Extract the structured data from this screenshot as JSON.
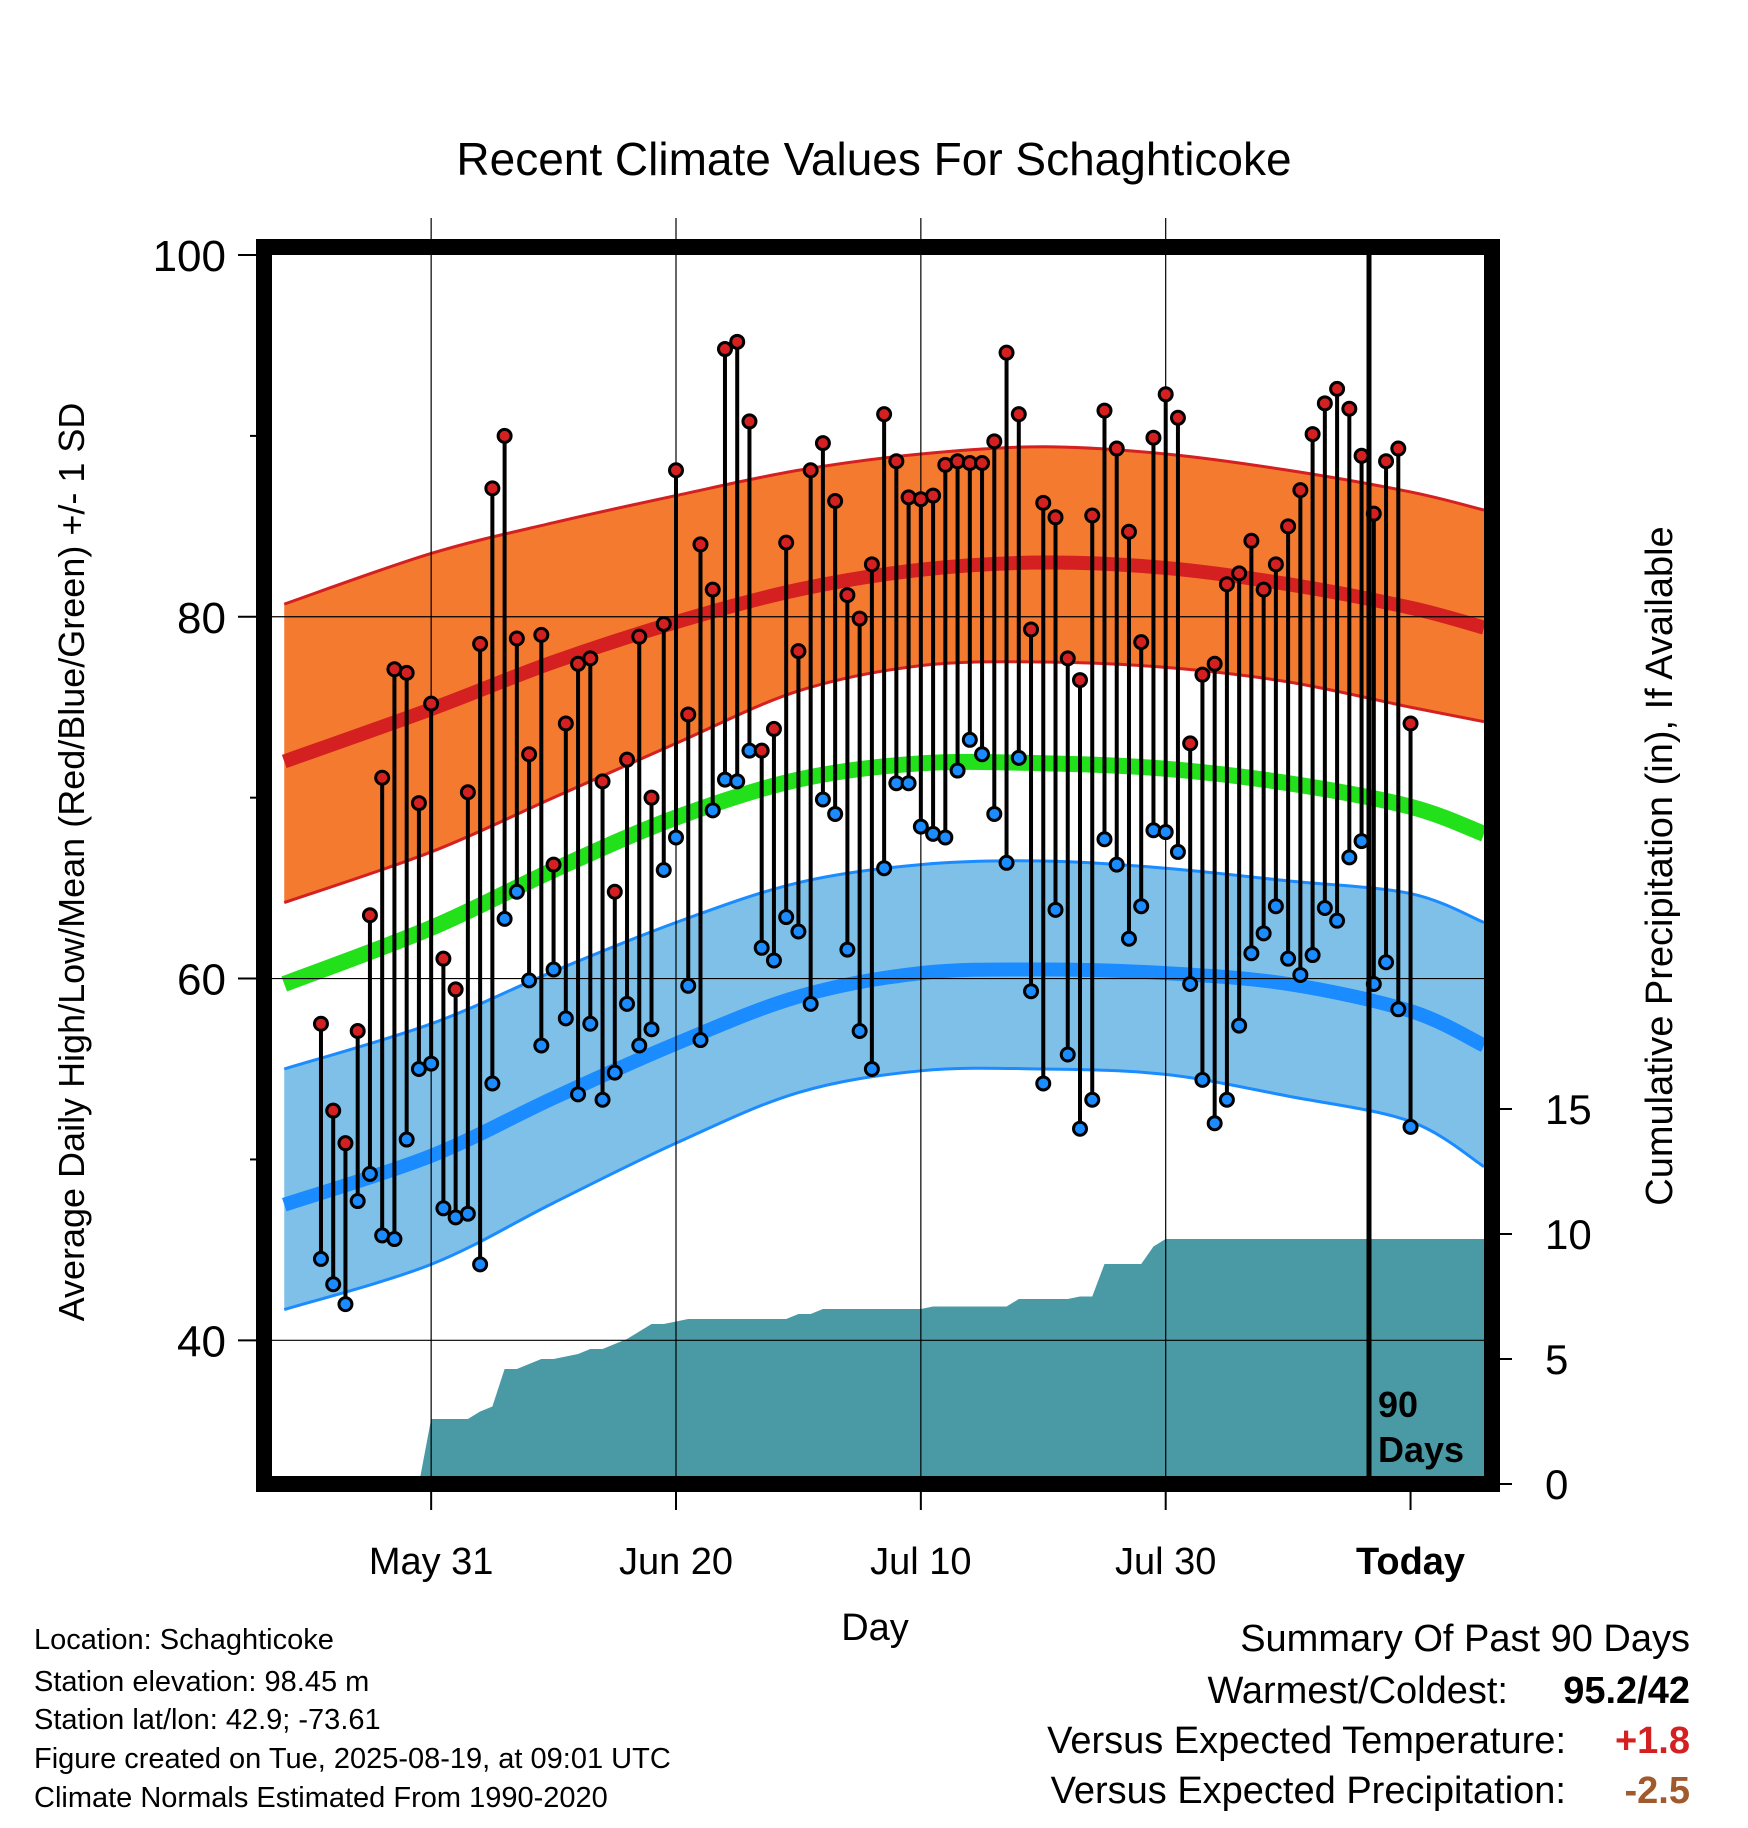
{
  "chart_data": {
    "type": "line",
    "title": "Recent Climate Values For Schaghticoke",
    "ylabel": "Average Daily High/Low/Mean (Red/Blue/Green) +/- 1 SD",
    "y2label": "Cumulative Precipitation (in), If Available",
    "xlabel": "Day",
    "ylim": [
      32.5,
      100
    ],
    "y2lim": [
      0,
      15
    ],
    "x_range_days": [
      -93,
      6
    ],
    "yticks": [
      "100",
      "80",
      "60",
      "40"
    ],
    "y2ticks": [
      "0",
      "5",
      "10",
      "15"
    ],
    "xticks": [
      {
        "label": "May 31",
        "day": -80
      },
      {
        "label": "Jun 20",
        "day": -60
      },
      {
        "label": "Jul 10",
        "day": -40
      },
      {
        "label": "Jul 30",
        "day": -20
      },
      {
        "label": "Today",
        "day": 0
      }
    ],
    "today_label": [
      "90",
      "Days"
    ],
    "colors": {
      "high": "#d42020",
      "high_band": "#f47a30",
      "low": "#1a8cff",
      "low_band": "#7fc0e8",
      "mean": "#22e01a",
      "precip": "#4a9aa5",
      "grid": "#000000"
    },
    "normals": {
      "day": [
        -92,
        -80,
        -70,
        -60,
        -50,
        -40,
        -30,
        -20,
        -10,
        0,
        6
      ],
      "high_mean": [
        72.0,
        74.9,
        77.5,
        79.7,
        81.5,
        82.6,
        83.0,
        82.7,
        81.8,
        80.5,
        79.4
      ],
      "high_upper": [
        80.7,
        83.5,
        85.2,
        86.7,
        88.1,
        89.0,
        89.4,
        89.0,
        88.1,
        86.9,
        85.9
      ],
      "high_lower": [
        64.2,
        67.0,
        70.0,
        73.0,
        75.9,
        77.3,
        77.5,
        77.2,
        76.4,
        75.0,
        74.2
      ],
      "mean_mean": [
        59.7,
        62.8,
        66.0,
        68.9,
        71.0,
        71.9,
        71.9,
        71.6,
        70.8,
        69.5,
        68.0
      ],
      "low_mean": [
        47.5,
        50.2,
        53.4,
        56.4,
        59.0,
        60.3,
        60.5,
        60.3,
        59.7,
        58.2,
        56.3
      ],
      "low_upper": [
        55.0,
        57.5,
        60.4,
        63.1,
        65.3,
        66.3,
        66.5,
        66.1,
        65.4,
        64.7,
        63.1
      ],
      "low_lower": [
        41.7,
        44.2,
        47.6,
        50.9,
        53.7,
        54.9,
        55.0,
        54.7,
        53.5,
        52.1,
        49.6
      ]
    },
    "series": [
      {
        "name": "High",
        "values": [
          57.5,
          52.7,
          50.9,
          57.1,
          63.5,
          71.1,
          77.1,
          76.9,
          69.7,
          75.2,
          61.1,
          59.4,
          70.3,
          78.5,
          87.1,
          90.0,
          78.8,
          72.4,
          79.0,
          66.3,
          74.1,
          77.4,
          77.7,
          70.9,
          64.8,
          72.1,
          78.9,
          70.0,
          79.6,
          88.1,
          74.6,
          84.0,
          81.5,
          94.8,
          95.2,
          90.8,
          72.6,
          73.8,
          84.1,
          78.1,
          88.1,
          89.6,
          86.4,
          81.2,
          79.9,
          82.9,
          91.2,
          88.6,
          86.6,
          86.5,
          86.7,
          88.4,
          88.6,
          88.5,
          88.5,
          89.7,
          94.6,
          91.2,
          79.3,
          86.3,
          85.5,
          77.7,
          76.5,
          85.6,
          91.4,
          89.3,
          84.7,
          78.6,
          89.9,
          92.3,
          91.0,
          73.0,
          76.8,
          77.4,
          81.8,
          82.4,
          84.2,
          81.5,
          82.9,
          85.0,
          87.0,
          90.1,
          91.8,
          92.6,
          91.5,
          88.9,
          85.7,
          88.6,
          89.3,
          74.1
        ]
      },
      {
        "name": "Low",
        "values": [
          44.5,
          43.1,
          42.0,
          47.7,
          49.2,
          45.8,
          45.6,
          51.1,
          55.0,
          55.3,
          47.3,
          46.8,
          47.0,
          44.2,
          54.2,
          63.3,
          64.8,
          59.9,
          56.3,
          60.5,
          57.8,
          53.6,
          57.5,
          53.3,
          54.8,
          58.6,
          56.3,
          57.2,
          66.0,
          67.8,
          59.6,
          56.6,
          69.3,
          71.0,
          70.9,
          72.6,
          61.7,
          61.0,
          63.4,
          62.6,
          58.6,
          69.9,
          69.1,
          61.6,
          57.1,
          55.0,
          66.1,
          70.8,
          70.8,
          68.4,
          68.0,
          67.8,
          71.5,
          73.2,
          72.4,
          69.1,
          66.4,
          72.2,
          59.3,
          54.2,
          63.8,
          55.8,
          51.7,
          53.3,
          67.7,
          66.3,
          62.2,
          64.0,
          68.2,
          68.1,
          67.0,
          59.7,
          54.4,
          52.0,
          53.3,
          57.4,
          61.4,
          62.5,
          64.0,
          61.1,
          60.2,
          61.3,
          63.9,
          63.2,
          66.7,
          67.6,
          59.7,
          60.9,
          58.3,
          51.8
        ]
      }
    ],
    "precip": {
      "day": [
        -93,
        -81,
        -80,
        -77,
        -76,
        -75,
        -74,
        -73,
        -72,
        -71,
        -70,
        -69,
        -68,
        -67,
        -66,
        -65,
        -64,
        -63,
        -62,
        -61,
        -60,
        -59,
        -58,
        -57,
        -56,
        -55,
        -54,
        -53,
        -52,
        -51,
        -50,
        -49,
        -48,
        -47,
        -46,
        -45,
        -44,
        -43,
        -42,
        -41,
        -40,
        -39,
        -38,
        -37,
        -36,
        -35,
        -34,
        -33,
        -32,
        -31,
        -30,
        -29,
        -28,
        -27,
        -26,
        -25,
        -24,
        -23,
        -22,
        -21,
        -20,
        -19,
        -18,
        -17,
        6
      ],
      "values": [
        0,
        0,
        2.6,
        2.6,
        2.9,
        3.1,
        4.6,
        4.6,
        4.8,
        5.0,
        5.0,
        5.1,
        5.2,
        5.4,
        5.4,
        5.6,
        5.8,
        6.1,
        6.4,
        6.4,
        6.5,
        6.6,
        6.6,
        6.6,
        6.6,
        6.6,
        6.6,
        6.6,
        6.6,
        6.6,
        6.8,
        6.8,
        7.0,
        7.0,
        7.0,
        7.0,
        7.0,
        7.0,
        7.0,
        7.0,
        7.0,
        7.1,
        7.1,
        7.1,
        7.1,
        7.1,
        7.1,
        7.1,
        7.4,
        7.4,
        7.4,
        7.4,
        7.4,
        7.5,
        7.5,
        8.8,
        8.8,
        8.8,
        8.8,
        9.5,
        9.8,
        9.8,
        9.8,
        9.8,
        9.8
      ]
    }
  },
  "footer": {
    "location": "Location: Schaghticoke",
    "elevation": "Station elevation: 98.45 m",
    "latlon": "Station lat/lon: 42.9; -73.61",
    "created": "Figure created on Tue, 2025-08-19, at 09:01 UTC",
    "normals": "Climate Normals Estimated From 1990-2020"
  },
  "summary": {
    "heading": "Summary Of Past 90 Days",
    "warmest_label": "Warmest/Coldest:",
    "warmest_value": "95.2/42",
    "temp_label": "Versus Expected Temperature:",
    "temp_value": "+1.8",
    "temp_color": "#d42020",
    "precip_label": "Versus Expected Precipitation:",
    "precip_value": "-2.5",
    "precip_color": "#a05a2c"
  }
}
